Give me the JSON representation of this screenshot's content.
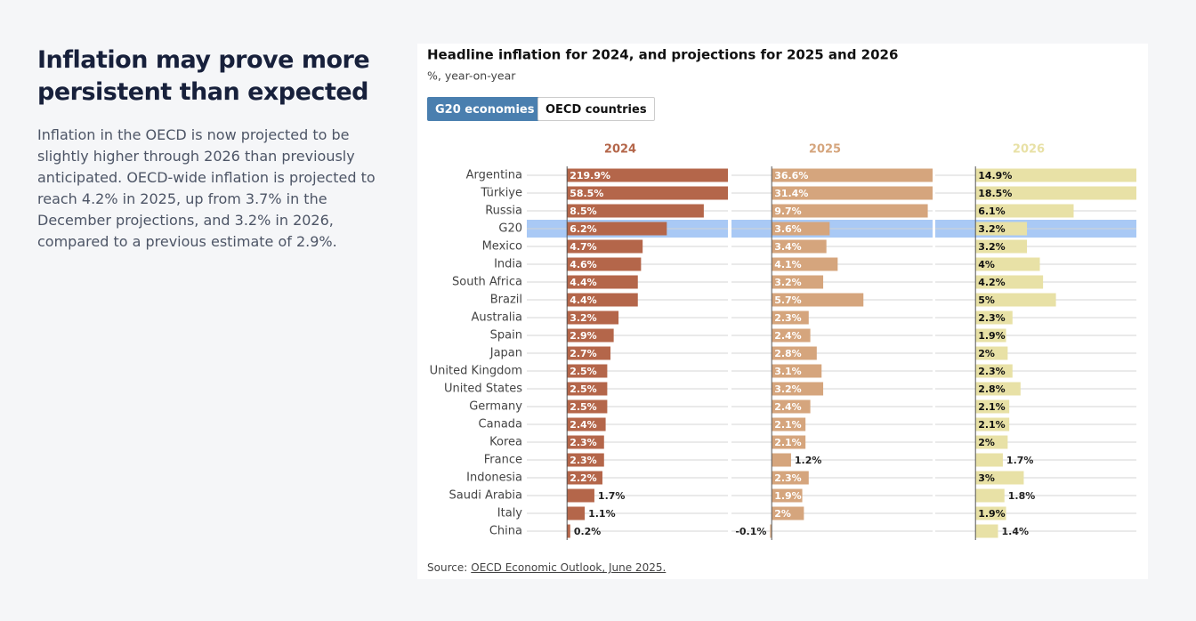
{
  "header": {
    "title": "Inflation may prove more persistent than expected",
    "body": "Inflation in the OECD is now projected to be slightly higher through 2026 than previously anticipated. OECD-wide inflation is projected to reach 4.2% in 2025, up from 3.7% in the December projections, and 3.2% in 2026, compared to a previous estimate of 2.9%."
  },
  "chart_data": {
    "type": "bar",
    "orientation": "horizontal",
    "title": "Headline inflation for 2024, and projections for 2025 and 2026",
    "subtitle": "%, year-on-year",
    "buttons": [
      "G20 economies",
      "OECD countries"
    ],
    "active_button": "G20 economies",
    "categories": [
      "Argentina",
      "Türkiye",
      "Russia",
      "G20",
      "Mexico",
      "India",
      "South Africa",
      "Brazil",
      "Australia",
      "Spain",
      "Japan",
      "United Kingdom",
      "United States",
      "Germany",
      "Canada",
      "Korea",
      "France",
      "Indonesia",
      "Saudi Arabia",
      "Italy",
      "China"
    ],
    "highlight": "G20",
    "highlight_color": "#a9c9f5",
    "xlim": [
      -2.5,
      10
    ],
    "series": [
      {
        "name": "2024",
        "color": "#b4664a",
        "label_color": "#ffffff",
        "values": [
          219.9,
          58.5,
          8.5,
          6.2,
          4.7,
          4.6,
          4.4,
          4.4,
          3.2,
          2.9,
          2.7,
          2.5,
          2.5,
          2.5,
          2.4,
          2.3,
          2.3,
          2.2,
          1.7,
          1.1,
          0.2
        ],
        "value_labels": [
          "219.9%",
          "58.5%",
          "8.5%",
          "6.2%",
          "4.7%",
          "4.6%",
          "4.4%",
          "4.4%",
          "3.2%",
          "2.9%",
          "2.7%",
          "2.5%",
          "2.5%",
          "2.5%",
          "2.4%",
          "2.3%",
          "2.3%",
          "2.2%",
          "1.7%",
          "1.1%",
          "0.2%"
        ]
      },
      {
        "name": "2025",
        "color": "#d5a57d",
        "label_color": "#ffffff",
        "values": [
          36.6,
          31.4,
          9.7,
          3.6,
          3.4,
          4.1,
          3.2,
          5.7,
          2.3,
          2.4,
          2.8,
          3.1,
          3.2,
          2.4,
          2.1,
          2.1,
          1.2,
          2.3,
          1.9,
          2,
          -0.1
        ],
        "value_labels": [
          "36.6%",
          "31.4%",
          "9.7%",
          "3.6%",
          "3.4%",
          "4.1%",
          "3.2%",
          "5.7%",
          "2.3%",
          "2.4%",
          "2.8%",
          "3.1%",
          "3.2%",
          "2.4%",
          "2.1%",
          "2.1%",
          "1.2%",
          "2.3%",
          "1.9%",
          "2%",
          "-0.1%"
        ]
      },
      {
        "name": "2026",
        "color": "#e8e1a6",
        "label_color": "#111111",
        "values": [
          14.9,
          18.5,
          6.1,
          3.2,
          3.2,
          4,
          4.2,
          5,
          2.3,
          1.9,
          2,
          2.3,
          2.8,
          2.1,
          2.1,
          2,
          1.7,
          3,
          1.8,
          1.9,
          1.4
        ],
        "value_labels": [
          "14.9%",
          "18.5%",
          "6.1%",
          "3.2%",
          "3.2%",
          "4%",
          "4.2%",
          "5%",
          "2.3%",
          "1.9%",
          "2%",
          "2.3%",
          "2.8%",
          "2.1%",
          "2.1%",
          "2%",
          "1.7%",
          "3%",
          "1.8%",
          "1.9%",
          "1.4%"
        ]
      }
    ],
    "source": {
      "label": "Source:",
      "link": "OECD Economic Outlook, June 2025."
    }
  }
}
